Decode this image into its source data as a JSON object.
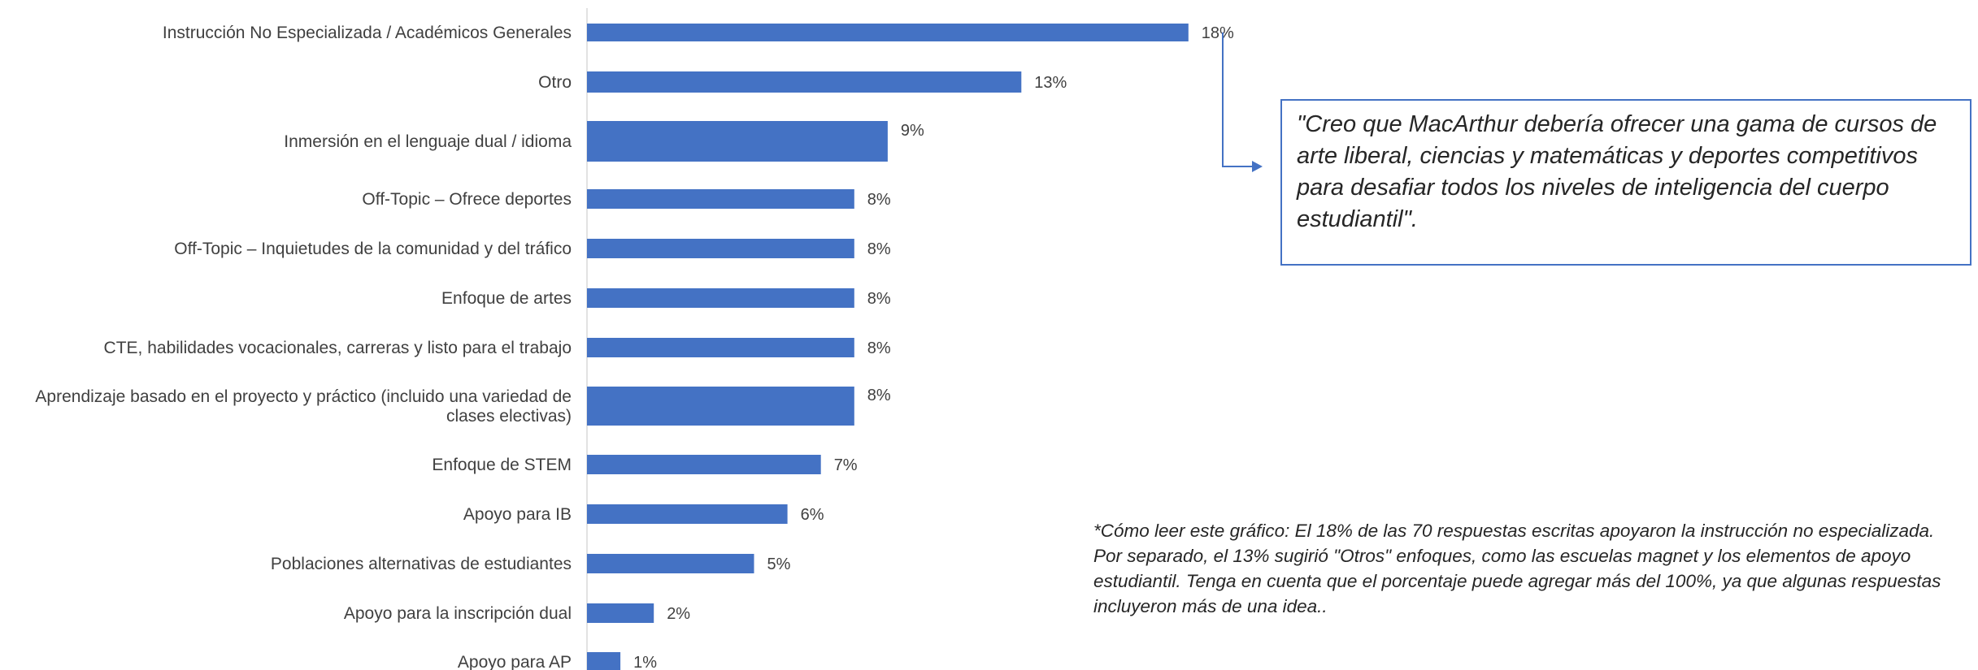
{
  "chart_data": {
    "type": "bar",
    "orientation": "horizontal",
    "categories": [
      "Instrucción No Especializada / Académicos Generales",
      "Otro",
      "Inmersión en el lenguaje dual / idioma",
      "Off-Topic – Ofrece deportes",
      "Off-Topic – Inquietudes de la comunidad y del  tráfico",
      "Enfoque de artes",
      "CTE, habilidades vocacionales, carreras y listo para el trabajo",
      "Aprendizaje basado en el proyecto y práctico (incluido una variedad de clases electivas)",
      "Enfoque de STEM",
      "Apoyo para IB",
      "Poblaciones alternativas de estudiantes",
      "Apoyo para la inscripción dual",
      "Apoyo para  AP"
    ],
    "values": [
      18,
      13,
      9,
      8,
      8,
      8,
      8,
      8,
      7,
      6,
      5,
      2,
      1
    ],
    "value_labels": [
      "18%",
      "13%",
      "9%",
      "8%",
      "8%",
      "8%",
      "8%",
      "8%",
      "7%",
      "6%",
      "5%",
      "2%",
      "1%"
    ],
    "unit": "%",
    "xlim": [
      0,
      18
    ],
    "grid": false,
    "bar_color": "#4472c4"
  },
  "quote": "\"Creo que MacArthur debería ofrecer una gama de cursos de arte liberal, ciencias y matemáticas y deportes competitivos para desafiar todos los niveles de inteligencia del cuerpo estudiantil\".",
  "footnote": "*Cómo leer este gráfico: El 18% de las 70 respuestas escritas apoyaron la instrucción no especializada. Por separado, el 13% sugirió \"Otros\" enfoques, como las escuelas magnet y los elementos de apoyo estudiantil. Tenga en cuenta que el porcentaje puede agregar más del 100%, ya que algunas respuestas incluyeron más de una idea..",
  "colors": {
    "accent": "#4472c4",
    "text": "#404040"
  }
}
